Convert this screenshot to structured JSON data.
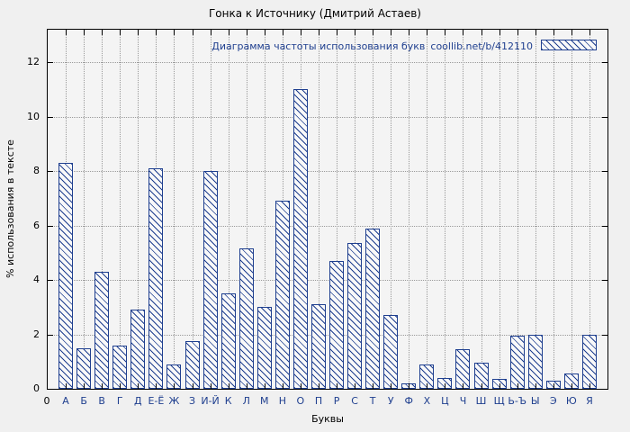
{
  "title": "Гонка к Источнику (Дмитрий Астаев)",
  "legend": {
    "label": "Диаграмма частоты использования букв",
    "source": "coollib.net/b/412110"
  },
  "axes": {
    "xlabel": "Буквы",
    "ylabel": "% использования в тексте",
    "origin_label": "0"
  },
  "chart_data": {
    "type": "bar",
    "title": "Гонка к Источнику (Дмитрий Астаев)",
    "legend_entry": "Диаграмма частоты использования букв coollib.net/b/412110",
    "legend_position": "top-right-inside",
    "xlabel": "Буквы",
    "ylabel": "% использования в тексте",
    "categories": [
      "А",
      "Б",
      "В",
      "Г",
      "Д",
      "Е-Ё",
      "Ж",
      "З",
      "И-Й",
      "К",
      "Л",
      "М",
      "Н",
      "О",
      "П",
      "Р",
      "С",
      "Т",
      "У",
      "Ф",
      "Х",
      "Ц",
      "Ч",
      "Ш",
      "Щ",
      "Ь-Ъ",
      "Ы",
      "Э",
      "Ю",
      "Я"
    ],
    "values": [
      8.3,
      1.5,
      4.3,
      1.6,
      2.9,
      8.1,
      0.9,
      1.75,
      8.0,
      3.5,
      5.15,
      3.0,
      6.9,
      11.0,
      3.1,
      4.7,
      5.35,
      5.9,
      2.7,
      0.2,
      0.9,
      0.4,
      1.45,
      0.95,
      0.35,
      1.95,
      2.0,
      0.3,
      0.55,
      2.0
    ],
    "yticks": [
      0,
      2,
      4,
      6,
      8,
      10,
      12
    ],
    "ylim": [
      0,
      13.2
    ],
    "grid": "dotted",
    "bar_style": "diagonal-hatch",
    "colors": {
      "bar_stroke": "#1f3f8f",
      "bar_fill": "#f9f9f9",
      "grid": "#9a9a9a",
      "background": "#f0f0f0",
      "axis": "#000000"
    }
  }
}
